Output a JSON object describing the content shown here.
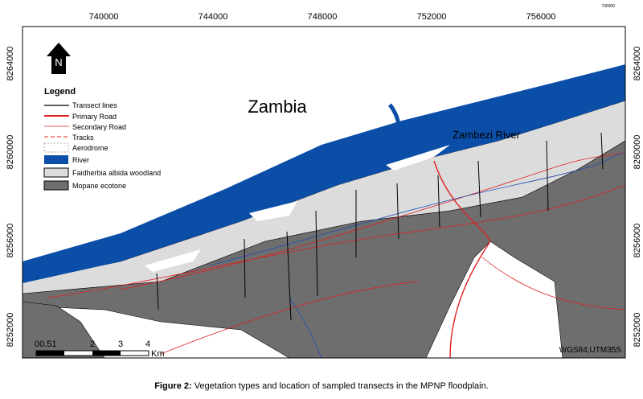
{
  "map": {
    "title": "Zambia",
    "river_label": "Zambezi River",
    "north": "N",
    "top_ticks": [
      "740000",
      "744000",
      "748000",
      "752000",
      "756000"
    ],
    "corner_tick": "736000",
    "left_ticks": [
      "8264000",
      "8260000",
      "8256000",
      "8252000"
    ],
    "right_ticks": [
      "8264000",
      "8260000",
      "8256000",
      "8252000"
    ],
    "legend": {
      "title": "Legend",
      "items": [
        "Transect lines",
        "Primary Road",
        "Secondary Road",
        "Tracks",
        "Aerodrome",
        "River",
        "Faidherbia albida woodland",
        "Mopane ecotone"
      ]
    },
    "scale": {
      "labels": [
        "00.51",
        "2",
        "3",
        "4"
      ],
      "unit": "Km"
    },
    "projection": "WGS84,UTM35S"
  },
  "caption": {
    "label": "Figure 2:",
    "text": " Vegetation types and location of sampled transects in the MPNP floodplain."
  }
}
